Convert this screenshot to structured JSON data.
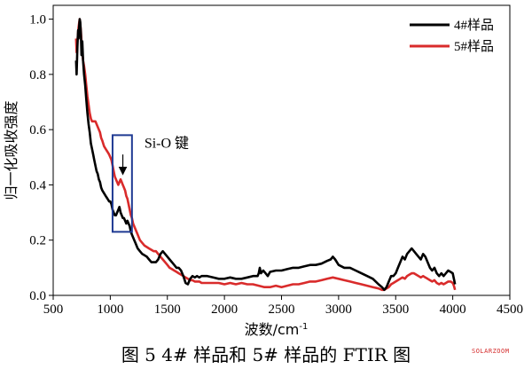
{
  "chart_data": {
    "type": "line",
    "title": "",
    "xlabel": "波数/cm",
    "xlabel_sup": "-1",
    "ylabel": "归一化吸收强度",
    "xlim": [
      500,
      4500
    ],
    "ylim": [
      0,
      1.05
    ],
    "x_ticks": [
      500,
      1000,
      1500,
      2000,
      2500,
      3000,
      3500,
      4000,
      4500
    ],
    "y_ticks": [
      0.0,
      0.2,
      0.4,
      0.6,
      0.8,
      1.0
    ],
    "x_tick_labels": [
      "500",
      "1000",
      "1500",
      "2000",
      "2500",
      "3000",
      "3500",
      "4000",
      "4500"
    ],
    "y_tick_labels": [
      "0.0",
      "0.2",
      "0.4",
      "0.6",
      "0.8",
      "1.0"
    ],
    "grid": false,
    "legend_position": "top-right",
    "series": [
      {
        "name": "4#样品",
        "color": "#000000",
        "points": [
          [
            700,
            0.85
          ],
          [
            705,
            0.8
          ],
          [
            712,
            0.9
          ],
          [
            718,
            0.96
          ],
          [
            722,
            0.93
          ],
          [
            728,
            0.98
          ],
          [
            732,
            1.0
          ],
          [
            737,
            0.99
          ],
          [
            742,
            0.95
          ],
          [
            748,
            0.87
          ],
          [
            755,
            0.92
          ],
          [
            762,
            0.85
          ],
          [
            770,
            0.8
          ],
          [
            780,
            0.76
          ],
          [
            790,
            0.71
          ],
          [
            800,
            0.66
          ],
          [
            810,
            0.62
          ],
          [
            820,
            0.59
          ],
          [
            830,
            0.55
          ],
          [
            840,
            0.53
          ],
          [
            850,
            0.51
          ],
          [
            860,
            0.49
          ],
          [
            870,
            0.47
          ],
          [
            880,
            0.45
          ],
          [
            890,
            0.44
          ],
          [
            900,
            0.42
          ],
          [
            910,
            0.41
          ],
          [
            920,
            0.39
          ],
          [
            930,
            0.38
          ],
          [
            945,
            0.37
          ],
          [
            960,
            0.36
          ],
          [
            975,
            0.35
          ],
          [
            990,
            0.34
          ],
          [
            1000,
            0.34
          ],
          [
            1010,
            0.33
          ],
          [
            1020,
            0.31
          ],
          [
            1030,
            0.3
          ],
          [
            1040,
            0.29
          ],
          [
            1050,
            0.29
          ],
          [
            1060,
            0.3
          ],
          [
            1070,
            0.31
          ],
          [
            1080,
            0.32
          ],
          [
            1090,
            0.3
          ],
          [
            1100,
            0.29
          ],
          [
            1110,
            0.28
          ],
          [
            1120,
            0.28
          ],
          [
            1130,
            0.27
          ],
          [
            1140,
            0.26
          ],
          [
            1150,
            0.27
          ],
          [
            1160,
            0.26
          ],
          [
            1170,
            0.25
          ],
          [
            1180,
            0.23
          ],
          [
            1190,
            0.22
          ],
          [
            1200,
            0.21
          ],
          [
            1210,
            0.2
          ],
          [
            1220,
            0.19
          ],
          [
            1240,
            0.17
          ],
          [
            1260,
            0.16
          ],
          [
            1280,
            0.15
          ],
          [
            1300,
            0.145
          ],
          [
            1320,
            0.14
          ],
          [
            1340,
            0.13
          ],
          [
            1360,
            0.12
          ],
          [
            1380,
            0.12
          ],
          [
            1400,
            0.12
          ],
          [
            1420,
            0.13
          ],
          [
            1440,
            0.15
          ],
          [
            1460,
            0.16
          ],
          [
            1480,
            0.15
          ],
          [
            1500,
            0.14
          ],
          [
            1520,
            0.13
          ],
          [
            1540,
            0.12
          ],
          [
            1560,
            0.11
          ],
          [
            1580,
            0.1
          ],
          [
            1600,
            0.1
          ],
          [
            1620,
            0.09
          ],
          [
            1640,
            0.07
          ],
          [
            1660,
            0.045
          ],
          [
            1680,
            0.04
          ],
          [
            1700,
            0.06
          ],
          [
            1720,
            0.07
          ],
          [
            1740,
            0.065
          ],
          [
            1760,
            0.07
          ],
          [
            1780,
            0.065
          ],
          [
            1800,
            0.07
          ],
          [
            1850,
            0.07
          ],
          [
            1900,
            0.065
          ],
          [
            1950,
            0.06
          ],
          [
            2000,
            0.06
          ],
          [
            2050,
            0.065
          ],
          [
            2100,
            0.06
          ],
          [
            2150,
            0.06
          ],
          [
            2200,
            0.065
          ],
          [
            2250,
            0.07
          ],
          [
            2290,
            0.07
          ],
          [
            2300,
            0.08
          ],
          [
            2310,
            0.1
          ],
          [
            2320,
            0.08
          ],
          [
            2340,
            0.09
          ],
          [
            2360,
            0.08
          ],
          [
            2380,
            0.07
          ],
          [
            2400,
            0.085
          ],
          [
            2450,
            0.09
          ],
          [
            2500,
            0.09
          ],
          [
            2550,
            0.095
          ],
          [
            2600,
            0.1
          ],
          [
            2650,
            0.1
          ],
          [
            2700,
            0.105
          ],
          [
            2750,
            0.11
          ],
          [
            2800,
            0.11
          ],
          [
            2850,
            0.115
          ],
          [
            2900,
            0.125
          ],
          [
            2930,
            0.13
          ],
          [
            2950,
            0.14
          ],
          [
            2970,
            0.13
          ],
          [
            3000,
            0.11
          ],
          [
            3050,
            0.1
          ],
          [
            3100,
            0.1
          ],
          [
            3150,
            0.09
          ],
          [
            3200,
            0.08
          ],
          [
            3250,
            0.07
          ],
          [
            3300,
            0.06
          ],
          [
            3350,
            0.04
          ],
          [
            3380,
            0.03
          ],
          [
            3400,
            0.02
          ],
          [
            3420,
            0.03
          ],
          [
            3440,
            0.05
          ],
          [
            3460,
            0.07
          ],
          [
            3480,
            0.07
          ],
          [
            3500,
            0.08
          ],
          [
            3520,
            0.1
          ],
          [
            3540,
            0.12
          ],
          [
            3560,
            0.14
          ],
          [
            3580,
            0.13
          ],
          [
            3600,
            0.15
          ],
          [
            3620,
            0.16
          ],
          [
            3640,
            0.17
          ],
          [
            3660,
            0.16
          ],
          [
            3680,
            0.15
          ],
          [
            3700,
            0.14
          ],
          [
            3720,
            0.13
          ],
          [
            3740,
            0.15
          ],
          [
            3760,
            0.14
          ],
          [
            3780,
            0.12
          ],
          [
            3800,
            0.1
          ],
          [
            3820,
            0.09
          ],
          [
            3840,
            0.1
          ],
          [
            3860,
            0.08
          ],
          [
            3880,
            0.07
          ],
          [
            3900,
            0.08
          ],
          [
            3920,
            0.07
          ],
          [
            3940,
            0.08
          ],
          [
            3960,
            0.09
          ],
          [
            3980,
            0.085
          ],
          [
            4000,
            0.08
          ],
          [
            4010,
            0.06
          ],
          [
            4020,
            0.04
          ]
        ]
      },
      {
        "name": "5#样品",
        "color": "#d92b2b",
        "points": [
          [
            700,
            0.93
          ],
          [
            705,
            0.88
          ],
          [
            712,
            0.92
          ],
          [
            718,
            0.95
          ],
          [
            722,
            0.97
          ],
          [
            728,
            0.99
          ],
          [
            732,
            1.0
          ],
          [
            737,
            0.98
          ],
          [
            742,
            0.96
          ],
          [
            748,
            0.92
          ],
          [
            755,
            0.88
          ],
          [
            762,
            0.85
          ],
          [
            770,
            0.83
          ],
          [
            780,
            0.8
          ],
          [
            790,
            0.76
          ],
          [
            800,
            0.72
          ],
          [
            810,
            0.69
          ],
          [
            820,
            0.66
          ],
          [
            830,
            0.64
          ],
          [
            840,
            0.63
          ],
          [
            850,
            0.63
          ],
          [
            860,
            0.63
          ],
          [
            870,
            0.63
          ],
          [
            880,
            0.62
          ],
          [
            890,
            0.61
          ],
          [
            900,
            0.6
          ],
          [
            910,
            0.59
          ],
          [
            920,
            0.57
          ],
          [
            930,
            0.56
          ],
          [
            945,
            0.54
          ],
          [
            960,
            0.53
          ],
          [
            975,
            0.52
          ],
          [
            990,
            0.51
          ],
          [
            1000,
            0.5
          ],
          [
            1010,
            0.49
          ],
          [
            1020,
            0.47
          ],
          [
            1030,
            0.45
          ],
          [
            1040,
            0.43
          ],
          [
            1050,
            0.42
          ],
          [
            1060,
            0.41
          ],
          [
            1070,
            0.4
          ],
          [
            1080,
            0.41
          ],
          [
            1090,
            0.42
          ],
          [
            1100,
            0.41
          ],
          [
            1110,
            0.4
          ],
          [
            1120,
            0.39
          ],
          [
            1130,
            0.38
          ],
          [
            1140,
            0.36
          ],
          [
            1150,
            0.35
          ],
          [
            1160,
            0.33
          ],
          [
            1170,
            0.31
          ],
          [
            1180,
            0.29
          ],
          [
            1190,
            0.28
          ],
          [
            1200,
            0.26
          ],
          [
            1210,
            0.25
          ],
          [
            1220,
            0.24
          ],
          [
            1240,
            0.22
          ],
          [
            1260,
            0.2
          ],
          [
            1280,
            0.19
          ],
          [
            1300,
            0.18
          ],
          [
            1320,
            0.175
          ],
          [
            1340,
            0.17
          ],
          [
            1360,
            0.165
          ],
          [
            1380,
            0.16
          ],
          [
            1400,
            0.16
          ],
          [
            1420,
            0.15
          ],
          [
            1440,
            0.14
          ],
          [
            1460,
            0.13
          ],
          [
            1480,
            0.12
          ],
          [
            1500,
            0.11
          ],
          [
            1520,
            0.1
          ],
          [
            1540,
            0.095
          ],
          [
            1560,
            0.09
          ],
          [
            1580,
            0.085
          ],
          [
            1600,
            0.08
          ],
          [
            1620,
            0.075
          ],
          [
            1640,
            0.07
          ],
          [
            1660,
            0.065
          ],
          [
            1680,
            0.06
          ],
          [
            1700,
            0.055
          ],
          [
            1720,
            0.055
          ],
          [
            1740,
            0.05
          ],
          [
            1760,
            0.05
          ],
          [
            1780,
            0.05
          ],
          [
            1800,
            0.045
          ],
          [
            1850,
            0.045
          ],
          [
            1900,
            0.045
          ],
          [
            1950,
            0.045
          ],
          [
            2000,
            0.04
          ],
          [
            2050,
            0.045
          ],
          [
            2100,
            0.04
          ],
          [
            2150,
            0.045
          ],
          [
            2200,
            0.04
          ],
          [
            2250,
            0.04
          ],
          [
            2300,
            0.035
          ],
          [
            2350,
            0.03
          ],
          [
            2400,
            0.03
          ],
          [
            2450,
            0.035
          ],
          [
            2500,
            0.03
          ],
          [
            2550,
            0.035
          ],
          [
            2600,
            0.04
          ],
          [
            2650,
            0.04
          ],
          [
            2700,
            0.045
          ],
          [
            2750,
            0.05
          ],
          [
            2800,
            0.05
          ],
          [
            2850,
            0.055
          ],
          [
            2900,
            0.06
          ],
          [
            2950,
            0.065
          ],
          [
            3000,
            0.06
          ],
          [
            3050,
            0.055
          ],
          [
            3100,
            0.05
          ],
          [
            3150,
            0.045
          ],
          [
            3200,
            0.04
          ],
          [
            3250,
            0.035
          ],
          [
            3300,
            0.03
          ],
          [
            3350,
            0.025
          ],
          [
            3380,
            0.02
          ],
          [
            3400,
            0.02
          ],
          [
            3420,
            0.025
          ],
          [
            3440,
            0.03
          ],
          [
            3460,
            0.04
          ],
          [
            3480,
            0.045
          ],
          [
            3500,
            0.05
          ],
          [
            3520,
            0.055
          ],
          [
            3540,
            0.06
          ],
          [
            3560,
            0.065
          ],
          [
            3580,
            0.06
          ],
          [
            3600,
            0.07
          ],
          [
            3620,
            0.075
          ],
          [
            3640,
            0.08
          ],
          [
            3660,
            0.08
          ],
          [
            3680,
            0.075
          ],
          [
            3700,
            0.07
          ],
          [
            3720,
            0.065
          ],
          [
            3740,
            0.07
          ],
          [
            3760,
            0.065
          ],
          [
            3780,
            0.06
          ],
          [
            3800,
            0.055
          ],
          [
            3820,
            0.05
          ],
          [
            3840,
            0.055
          ],
          [
            3860,
            0.045
          ],
          [
            3880,
            0.04
          ],
          [
            3900,
            0.045
          ],
          [
            3920,
            0.04
          ],
          [
            3940,
            0.045
          ],
          [
            3960,
            0.05
          ],
          [
            3980,
            0.05
          ],
          [
            4000,
            0.045
          ],
          [
            4010,
            0.035
          ],
          [
            4020,
            0.02
          ]
        ]
      }
    ],
    "annotations": [
      {
        "text": "Si-O 键",
        "box_x": [
          1020,
          1190
        ],
        "box_y": [
          0.23,
          0.58
        ],
        "arrow_x": 1110,
        "arrow_y": [
          0.51,
          0.45
        ]
      }
    ]
  },
  "figure": {
    "caption": "图 5 4# 样品和 5# 样品的 FTIR 图",
    "watermark": "SOLARZOOM"
  }
}
